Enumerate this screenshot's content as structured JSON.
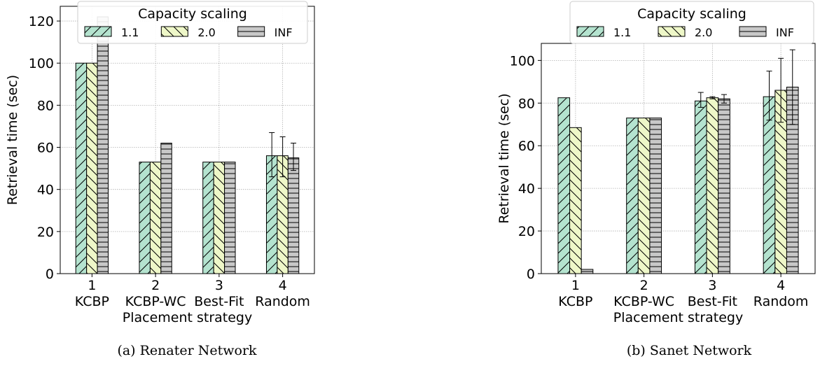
{
  "chart_data": [
    {
      "type": "bar",
      "caption": "(a) Renater Network",
      "legend_title": "Capacity scaling",
      "legend_position": "top-center",
      "xlabel": "Placement strategy",
      "ylabel": "Retrieval time (sec)",
      "ylim": [
        0,
        127
      ],
      "yticks": [
        0,
        20,
        40,
        60,
        80,
        100,
        120
      ],
      "grid": true,
      "categories": [
        "1",
        "2",
        "3",
        "4"
      ],
      "category_labels": [
        "KCBP",
        "KCBP-WC",
        "Best-Fit",
        "Random"
      ],
      "series": [
        {
          "name": "1.1",
          "values": [
            100,
            53,
            53,
            56
          ],
          "errors": [
            null,
            null,
            null,
            [
              46,
              67
            ]
          ]
        },
        {
          "name": "2.0",
          "values": [
            100,
            53,
            53,
            56
          ],
          "errors": [
            null,
            null,
            null,
            [
              46,
              65
            ]
          ]
        },
        {
          "name": "INF",
          "values": [
            122,
            62,
            53,
            55
          ],
          "errors": [
            null,
            null,
            null,
            [
              49,
              62
            ]
          ]
        }
      ]
    },
    {
      "type": "bar",
      "caption": "(b) Sanet Network",
      "legend_title": "Capacity scaling",
      "legend_position": "top-center",
      "xlabel": "Placement strategy",
      "ylabel": "Retrieval time (sec)",
      "ylim": [
        0,
        108
      ],
      "yticks": [
        0,
        20,
        40,
        60,
        80,
        100
      ],
      "grid": true,
      "categories": [
        "1",
        "2",
        "3",
        "4"
      ],
      "category_labels": [
        "KCBP",
        "KCBP-WC",
        "Best-Fit",
        "Random"
      ],
      "series": [
        {
          "name": "1.1",
          "values": [
            82.5,
            73,
            81,
            83
          ],
          "errors": [
            null,
            null,
            [
              78,
              85
            ],
            [
              72,
              95
            ]
          ]
        },
        {
          "name": "2.0",
          "values": [
            68.5,
            73,
            82.5,
            86
          ],
          "errors": [
            null,
            null,
            [
              82,
              83
            ],
            [
              71,
              101
            ]
          ]
        },
        {
          "name": "INF",
          "values": [
            2,
            73,
            82,
            87.5
          ],
          "errors": [
            null,
            null,
            [
              80,
              84
            ],
            [
              70,
              105
            ]
          ]
        }
      ]
    }
  ],
  "colors": {
    "1.1": "#b4e3cf",
    "2.0": "#eef7c8",
    "INF": "#c8c8c8",
    "grid": "#b0b0b0"
  }
}
